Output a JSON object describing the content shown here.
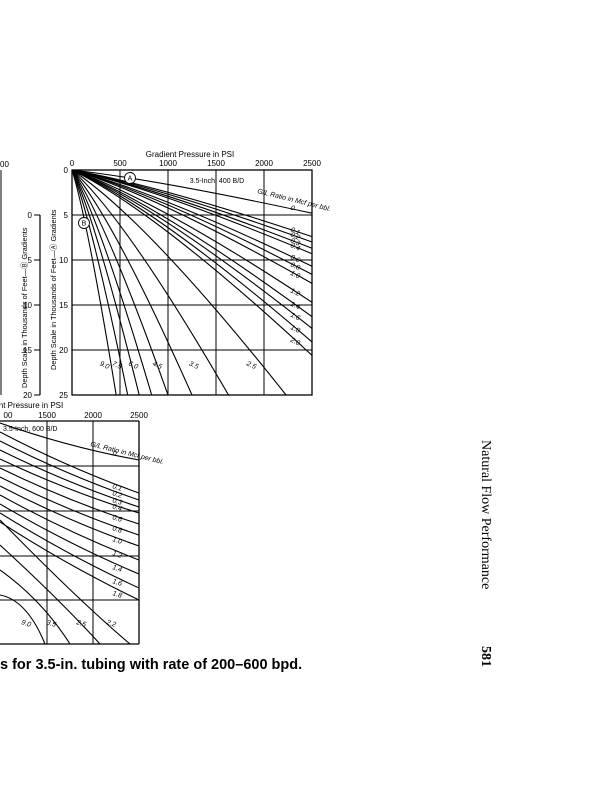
{
  "page": {
    "running_head": "Natural Flow Performance",
    "page_number": "581",
    "caption": "s for 3.5-in. tubing with rate of 200–600 bpd."
  },
  "top_left_fragment": {
    "tick_top": "00",
    "gradients_label": "Depth Scale in Thousands of Feet—Ⓑ Gradients",
    "y_ticks": [
      "0",
      "5",
      "10",
      "15",
      "20"
    ]
  },
  "chart_data": [
    {
      "type": "line",
      "title": "Gradient Pressure in PSI",
      "subtitle": "3.5-Inch, 400 B/D",
      "xlabel": "Gradient Pressure in PSI",
      "ylabel": "Depth Scale in Thousands of Feet—Ⓐ Gradients",
      "legend_title": "G/L Ratio in Mcf per bbl.",
      "markers": [
        "A",
        "B"
      ],
      "xlim": [
        0,
        2500
      ],
      "ylim": [
        25,
        0
      ],
      "x_ticks": [
        0,
        500,
        1000,
        1500,
        2000,
        2500
      ],
      "y_ticks": [
        0,
        5,
        10,
        15,
        20,
        25
      ],
      "grid": true,
      "series": [
        {
          "name": "0",
          "x": [
            0,
            2500
          ],
          "y": [
            0,
            4.8
          ]
        },
        {
          "name": "0.1",
          "x": [
            0,
            2500
          ],
          "y": [
            0,
            7.4
          ]
        },
        {
          "name": "0.2",
          "x": [
            0,
            2500
          ],
          "y": [
            0,
            8.0
          ]
        },
        {
          "name": "0.3",
          "x": [
            0,
            2500
          ],
          "y": [
            0,
            8.7
          ]
        },
        {
          "name": "0.4",
          "x": [
            0,
            2500
          ],
          "y": [
            0,
            9.3
          ]
        },
        {
          "name": "0.6",
          "x": [
            0,
            2500
          ],
          "y": [
            0,
            10.7
          ]
        },
        {
          "name": "0.8",
          "x": [
            0,
            2500
          ],
          "y": [
            0,
            11.6
          ]
        },
        {
          "name": "1.0",
          "x": [
            0,
            2500
          ],
          "y": [
            0,
            12.6
          ]
        },
        {
          "name": "1.2",
          "x": [
            0,
            2500
          ],
          "y": [
            0,
            14.7
          ]
        },
        {
          "name": "1.4",
          "x": [
            0,
            2500
          ],
          "y": [
            0,
            16.3
          ]
        },
        {
          "name": "1.6",
          "x": [
            0,
            2500
          ],
          "y": [
            0,
            17.6
          ]
        },
        {
          "name": "1.8",
          "x": [
            0,
            2500
          ],
          "y": [
            0,
            19.1
          ]
        },
        {
          "name": "2.0",
          "x": [
            0,
            2500
          ],
          "y": [
            0,
            20.6
          ]
        },
        {
          "name": "2.5",
          "x": [
            0,
            2230
          ],
          "y": [
            0,
            25
          ]
        },
        {
          "name": "3.5",
          "x": [
            0,
            1630
          ],
          "y": [
            0,
            25
          ]
        },
        {
          "name": "4.5",
          "x": [
            0,
            1250
          ],
          "y": [
            0,
            25
          ]
        },
        {
          "name": "6.0",
          "x": [
            0,
            1000
          ],
          "y": [
            0,
            25
          ]
        },
        {
          "name": "7.5",
          "x": [
            0,
            830
          ],
          "y": [
            0,
            25
          ]
        },
        {
          "name": "9.0",
          "x": [
            0,
            700
          ],
          "y": [
            0,
            25
          ]
        },
        {
          "name": "",
          "x": [
            0,
            580
          ],
          "y": [
            0,
            25
          ]
        },
        {
          "name": "",
          "x": [
            0,
            460
          ],
          "y": [
            0,
            25
          ]
        }
      ]
    },
    {
      "type": "line",
      "title": "nt Pressure in PSI",
      "subtitle": "3.5-Inch, 600 B/D",
      "legend_title": "G/L Ratio in Mcf per bbl.",
      "x_ticks": [
        "00",
        "1500",
        "2000",
        "2500"
      ],
      "xlim": [
        0,
        2500
      ],
      "grid": true,
      "series": [
        {
          "name": "0"
        },
        {
          "name": "0.1"
        },
        {
          "name": "0.2"
        },
        {
          "name": "0.3"
        },
        {
          "name": "0.4"
        },
        {
          "name": "0.6"
        },
        {
          "name": "0.8"
        },
        {
          "name": "1.0"
        },
        {
          "name": "1.2"
        },
        {
          "name": "1.4"
        },
        {
          "name": "1.6"
        },
        {
          "name": "1.8"
        },
        {
          "name": "2.2"
        },
        {
          "name": "2.5"
        },
        {
          "name": "3.5"
        },
        {
          "name": "9.0"
        }
      ]
    }
  ]
}
